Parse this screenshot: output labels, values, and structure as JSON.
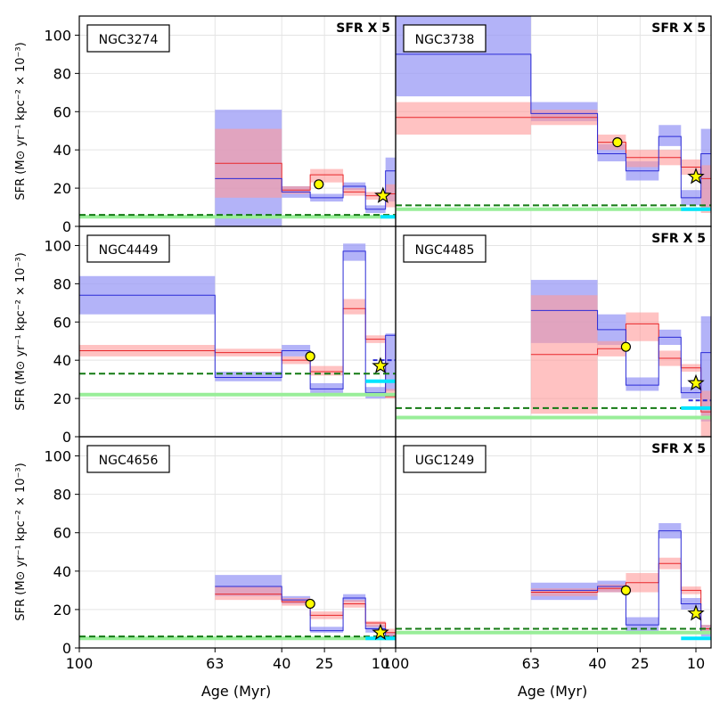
{
  "chart_data": {
    "type": "step",
    "layout": "3 rows x 2 columns, shared axes",
    "xlabel": "Age (Myr)",
    "ylabel": "SFR (M⊙ yr⁻¹ kpc⁻² × 10⁻³)",
    "xticks": [
      100,
      63,
      40,
      25,
      10
    ],
    "xtick_labels": [
      "100",
      "63",
      "40",
      "25",
      "10"
    ],
    "yticks": [
      0,
      20,
      40,
      60,
      80,
      100
    ],
    "ylim": [
      0,
      110
    ],
    "grid": true,
    "colors": {
      "red_series": "#e8262a",
      "red_band": "#ff9999",
      "blue_series": "#2b2bd6",
      "blue_band": "#9a9af5",
      "green_dashed": "#137a13",
      "green_light": "#99ee99",
      "cyan": "#00e5ff",
      "circle_marker": "#ffff00",
      "star_marker": "#ffff00"
    },
    "panels": [
      {
        "name": "NGC3274",
        "note": "SFR X 5",
        "blue": [
          {
            "age": [
              63,
              40
            ],
            "value": 25,
            "lo": 0,
            "hi": 61
          },
          {
            "age": [
              40,
              30
            ],
            "value": 18,
            "lo": 15,
            "hi": 21
          },
          {
            "age": [
              30,
              20
            ],
            "value": 15,
            "lo": 13,
            "hi": 17
          },
          {
            "age": [
              20,
              14
            ],
            "value": 21,
            "lo": 19,
            "hi": 23
          },
          {
            "age": [
              14,
              8
            ],
            "value": 9,
            "lo": 7,
            "hi": 11
          },
          {
            "age": [
              8,
              4
            ],
            "value": 29,
            "lo": 13,
            "hi": 36
          }
        ],
        "red": [
          {
            "age": [
              63,
              40
            ],
            "value": 33,
            "lo": 15,
            "hi": 51
          },
          {
            "age": [
              40,
              30
            ],
            "value": 19,
            "lo": 17,
            "hi": 21
          },
          {
            "age": [
              30,
              20
            ],
            "value": 27,
            "lo": 23,
            "hi": 30
          },
          {
            "age": [
              20,
              14
            ],
            "value": 18,
            "lo": 16,
            "hi": 20
          },
          {
            "age": [
              14,
              8
            ],
            "value": 16,
            "lo": 14,
            "hi": 18
          },
          {
            "age": [
              8,
              4
            ],
            "value": 17,
            "lo": 10,
            "hi": 22
          }
        ],
        "circle": {
          "age": 27,
          "value": 22
        },
        "star": {
          "age": 9,
          "value": 16
        },
        "green_dashed": 6,
        "green_light": 5,
        "cyan": [
          {
            "age": [
              10,
              4
            ],
            "value": 5
          }
        ]
      },
      {
        "name": "NGC3738",
        "note": "SFR X 5",
        "blue": [
          {
            "age": [
              100,
              63
            ],
            "value": 90,
            "lo": 68,
            "hi": 110
          },
          {
            "age": [
              63,
              40
            ],
            "value": 59,
            "lo": 55,
            "hi": 65
          },
          {
            "age": [
              40,
              30
            ],
            "value": 38,
            "lo": 34,
            "hi": 43
          },
          {
            "age": [
              30,
              20
            ],
            "value": 29,
            "lo": 24,
            "hi": 34
          },
          {
            "age": [
              20,
              14
            ],
            "value": 47,
            "lo": 42,
            "hi": 53
          },
          {
            "age": [
              14,
              8
            ],
            "value": 15,
            "lo": 11,
            "hi": 19
          },
          {
            "age": [
              8,
              4
            ],
            "value": 38,
            "lo": 9,
            "hi": 51
          }
        ],
        "red": [
          {
            "age": [
              100,
              63
            ],
            "value": 57,
            "lo": 48,
            "hi": 65
          },
          {
            "age": [
              63,
              40
            ],
            "value": 57,
            "lo": 53,
            "hi": 61
          },
          {
            "age": [
              40,
              30
            ],
            "value": 44,
            "lo": 40,
            "hi": 48
          },
          {
            "age": [
              30,
              20
            ],
            "value": 36,
            "lo": 31,
            "hi": 40
          },
          {
            "age": [
              20,
              14
            ],
            "value": 36,
            "lo": 32,
            "hi": 40
          },
          {
            "age": [
              14,
              8
            ],
            "value": 31,
            "lo": 27,
            "hi": 35
          },
          {
            "age": [
              8,
              4
            ],
            "value": 25,
            "lo": 7,
            "hi": 32
          }
        ],
        "circle": {
          "age": 33,
          "value": 44
        },
        "star": {
          "age": 10,
          "value": 26
        },
        "green_dashed": 11,
        "green_light": 9,
        "cyan": [
          {
            "age": [
              14,
              4
            ],
            "value": 9
          }
        ]
      },
      {
        "name": "NGC4449",
        "note": "",
        "blue": [
          {
            "age": [
              100,
              63
            ],
            "value": 74,
            "lo": 64,
            "hi": 84
          },
          {
            "age": [
              63,
              40
            ],
            "value": 31,
            "lo": 29,
            "hi": 34
          },
          {
            "age": [
              40,
              30
            ],
            "value": 45,
            "lo": 42,
            "hi": 48
          },
          {
            "age": [
              30,
              20
            ],
            "value": 25,
            "lo": 22,
            "hi": 28
          },
          {
            "age": [
              20,
              14
            ],
            "value": 97,
            "lo": 92,
            "hi": 101
          },
          {
            "age": [
              14,
              8
            ],
            "value": 23,
            "lo": 20,
            "hi": 26
          },
          {
            "age": [
              8,
              4
            ],
            "value": 53,
            "lo": 24,
            "hi": 54
          }
        ],
        "red": [
          {
            "age": [
              100,
              63
            ],
            "value": 45,
            "lo": 42,
            "hi": 48
          },
          {
            "age": [
              63,
              40
            ],
            "value": 44,
            "lo": 42,
            "hi": 46
          },
          {
            "age": [
              40,
              30
            ],
            "value": 40,
            "lo": 38,
            "hi": 42
          },
          {
            "age": [
              30,
              20
            ],
            "value": 34,
            "lo": 32,
            "hi": 37
          },
          {
            "age": [
              20,
              14
            ],
            "value": 67,
            "lo": 64,
            "hi": 72
          },
          {
            "age": [
              14,
              8
            ],
            "value": 51,
            "lo": 49,
            "hi": 53
          },
          {
            "age": [
              8,
              4
            ],
            "value": 21,
            "lo": 20,
            "hi": 25
          }
        ],
        "circle": {
          "age": 30,
          "value": 42
        },
        "star": {
          "age": 10,
          "value": 37
        },
        "green_dashed": 33,
        "green_light": 22,
        "cyan": [
          {
            "age": [
              14,
              4
            ],
            "value": 29
          }
        ],
        "blue_dashed": 40
      },
      {
        "name": "NGC4485",
        "note": "SFR X 5",
        "blue": [
          {
            "age": [
              63,
              40
            ],
            "value": 66,
            "lo": 49,
            "hi": 82
          },
          {
            "age": [
              40,
              30
            ],
            "value": 56,
            "lo": 48,
            "hi": 64
          },
          {
            "age": [
              30,
              20
            ],
            "value": 27,
            "lo": 24,
            "hi": 31
          },
          {
            "age": [
              20,
              14
            ],
            "value": 52,
            "lo": 48,
            "hi": 56
          },
          {
            "age": [
              14,
              8
            ],
            "value": 23,
            "lo": 20,
            "hi": 26
          },
          {
            "age": [
              8,
              4
            ],
            "value": 44,
            "lo": 8,
            "hi": 63
          }
        ],
        "red": [
          {
            "age": [
              63,
              40
            ],
            "value": 43,
            "lo": 12,
            "hi": 74
          },
          {
            "age": [
              40,
              30
            ],
            "value": 46,
            "lo": 42,
            "hi": 50
          },
          {
            "age": [
              30,
              20
            ],
            "value": 59,
            "lo": 50,
            "hi": 65
          },
          {
            "age": [
              20,
              14
            ],
            "value": 41,
            "lo": 37,
            "hi": 45
          },
          {
            "age": [
              14,
              8
            ],
            "value": 36,
            "lo": 34,
            "hi": 38
          },
          {
            "age": [
              8,
              4
            ],
            "value": 13,
            "lo": 0,
            "hi": 24
          }
        ],
        "circle": {
          "age": 30,
          "value": 47
        },
        "star": {
          "age": 10,
          "value": 28
        },
        "green_dashed": 15,
        "green_light": 10,
        "cyan": [
          {
            "age": [
              14,
              4
            ],
            "value": 15
          }
        ],
        "blue_dashed": 19
      },
      {
        "name": "NGC4656",
        "note": "",
        "blue": [
          {
            "age": [
              63,
              40
            ],
            "value": 32,
            "lo": 27,
            "hi": 38
          },
          {
            "age": [
              40,
              30
            ],
            "value": 25,
            "lo": 23,
            "hi": 27
          },
          {
            "age": [
              30,
              20
            ],
            "value": 9,
            "lo": 8,
            "hi": 11
          },
          {
            "age": [
              20,
              14
            ],
            "value": 26,
            "lo": 24,
            "hi": 28
          },
          {
            "age": [
              14,
              8
            ],
            "value": 10,
            "lo": 8,
            "hi": 12
          },
          {
            "age": [
              8,
              4
            ],
            "value": 6,
            "lo": 4,
            "hi": 8
          }
        ],
        "red": [
          {
            "age": [
              63,
              40
            ],
            "value": 28,
            "lo": 25,
            "hi": 32
          },
          {
            "age": [
              40,
              30
            ],
            "value": 24,
            "lo": 22,
            "hi": 26
          },
          {
            "age": [
              30,
              20
            ],
            "value": 17,
            "lo": 15,
            "hi": 19
          },
          {
            "age": [
              20,
              14
            ],
            "value": 23,
            "lo": 21,
            "hi": 25
          },
          {
            "age": [
              14,
              8
            ],
            "value": 13,
            "lo": 11,
            "hi": 14
          },
          {
            "age": [
              8,
              4
            ],
            "value": 8,
            "lo": 6,
            "hi": 10
          }
        ],
        "circle": {
          "age": 30,
          "value": 23
        },
        "star": {
          "age": 10,
          "value": 8
        },
        "green_dashed": 6,
        "green_light": 5,
        "cyan": [
          {
            "age": [
              14,
              4
            ],
            "value": 5
          }
        ]
      },
      {
        "name": "UGC1249",
        "note": "SFR X 5",
        "blue": [
          {
            "age": [
              63,
              40
            ],
            "value": 30,
            "lo": 25,
            "hi": 34
          },
          {
            "age": [
              40,
              30
            ],
            "value": 32,
            "lo": 29,
            "hi": 35
          },
          {
            "age": [
              30,
              20
            ],
            "value": 12,
            "lo": 8,
            "hi": 16
          },
          {
            "age": [
              20,
              14
            ],
            "value": 61,
            "lo": 57,
            "hi": 65
          },
          {
            "age": [
              14,
              8
            ],
            "value": 23,
            "lo": 20,
            "hi": 26
          },
          {
            "age": [
              8,
              4
            ],
            "value": 8,
            "lo": 6,
            "hi": 12
          }
        ],
        "red": [
          {
            "age": [
              63,
              40
            ],
            "value": 29,
            "lo": 27,
            "hi": 31
          },
          {
            "age": [
              40,
              30
            ],
            "value": 31,
            "lo": 29,
            "hi": 33
          },
          {
            "age": [
              30,
              20
            ],
            "value": 34,
            "lo": 29,
            "hi": 39
          },
          {
            "age": [
              20,
              14
            ],
            "value": 44,
            "lo": 41,
            "hi": 47
          },
          {
            "age": [
              14,
              8
            ],
            "value": 30,
            "lo": 28,
            "hi": 32
          },
          {
            "age": [
              8,
              4
            ],
            "value": 10,
            "lo": 8,
            "hi": 12
          }
        ],
        "circle": {
          "age": 30,
          "value": 30
        },
        "star": {
          "age": 10,
          "value": 18
        },
        "green_dashed": 10,
        "green_light": 8,
        "cyan": [
          {
            "age": [
              14,
              4
            ],
            "value": 5
          }
        ]
      }
    ]
  }
}
